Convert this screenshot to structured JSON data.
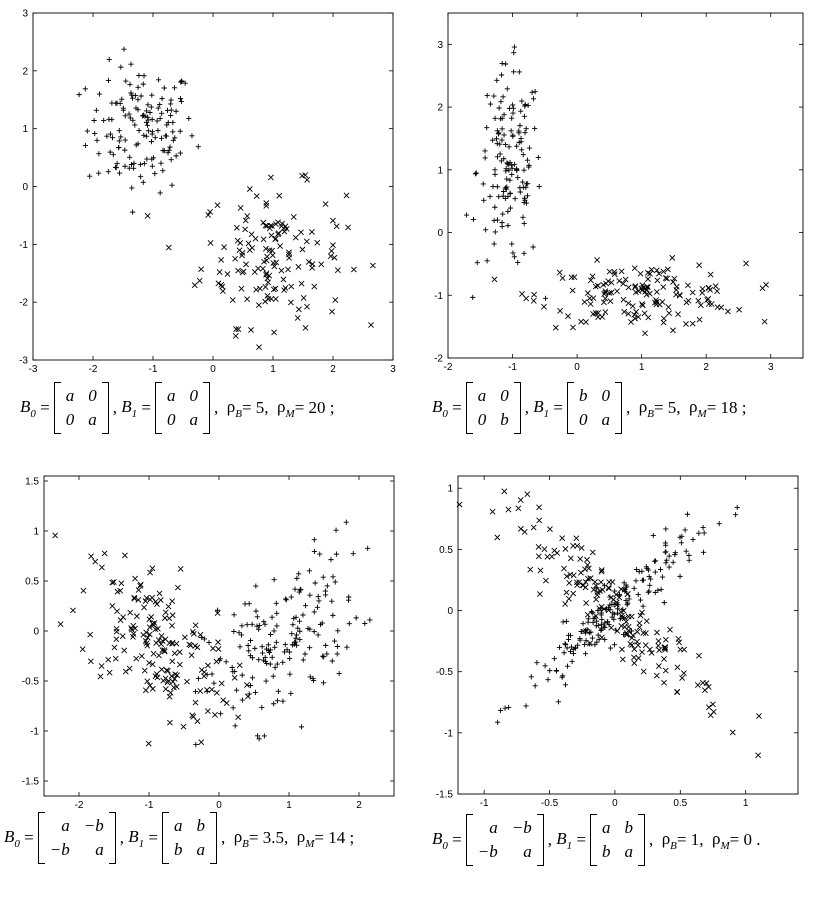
{
  "panels": [
    {
      "id": "p1",
      "caption": {
        "b0": [
          "a",
          "0",
          "0",
          "a"
        ],
        "b1": [
          "a",
          "0",
          "0",
          "a"
        ],
        "rhoB": "5",
        "rhoM": "20",
        "end": ";"
      }
    },
    {
      "id": "p2",
      "caption": {
        "b0": [
          "a",
          "0",
          "0",
          "b"
        ],
        "b1": [
          "b",
          "0",
          "0",
          "a"
        ],
        "rhoB": "5",
        "rhoM": "18",
        "end": ";"
      }
    },
    {
      "id": "p3",
      "caption": {
        "b0": [
          "a",
          "−b",
          "−b",
          "a"
        ],
        "b1": [
          "a",
          "b",
          "b",
          "a"
        ],
        "rhoB": "3.5",
        "rhoM": "14",
        "end": ";"
      }
    },
    {
      "id": "p4",
      "caption": {
        "b0": [
          "a",
          "−b",
          "−b",
          "a"
        ],
        "b1": [
          "a",
          "b",
          "b",
          "a"
        ],
        "rhoB": "1",
        "rhoM": "0",
        "end": "."
      }
    }
  ],
  "labels": {
    "B": "B",
    "zero": "0",
    "one": "1",
    "rho": "ρ",
    "subB": "B",
    "subM": "M",
    "eq": "=",
    "comma": ","
  },
  "chart_data": [
    {
      "type": "scatter",
      "xlim": [
        -3,
        3
      ],
      "ylim": [
        -3,
        3
      ],
      "xticks": [
        "-3",
        "-2",
        "-1",
        "0",
        "1",
        "2",
        "3"
      ],
      "yticks": [
        "-3",
        "-2",
        "-1",
        "0",
        "1",
        "2",
        "3"
      ],
      "series": [
        {
          "marker": "plus",
          "center": [
            -1.2,
            1.0
          ],
          "spread": [
            0.45,
            0.55
          ],
          "rho": 0,
          "n": 150
        },
        {
          "marker": "cross",
          "center": [
            1.0,
            -1.2
          ],
          "spread": [
            0.6,
            0.6
          ],
          "rho": 0,
          "n": 150
        }
      ]
    },
    {
      "type": "scatter",
      "xlim": [
        -2,
        3.5
      ],
      "ylim": [
        -2,
        3.5
      ],
      "xticks": [
        "-2",
        "-1",
        "0",
        "1",
        "2",
        "3"
      ],
      "yticks": [
        "-2",
        "-1",
        "0",
        "1",
        "2",
        "3"
      ],
      "series": [
        {
          "marker": "plus",
          "center": [
            -1.05,
            1.0
          ],
          "spread": [
            0.25,
            0.8
          ],
          "rho": 0,
          "n": 150
        },
        {
          "marker": "cross",
          "center": [
            1.0,
            -1.0
          ],
          "spread": [
            0.8,
            0.25
          ],
          "rho": 0,
          "n": 150
        }
      ]
    },
    {
      "type": "scatter",
      "xlim": [
        -2.5,
        2.5
      ],
      "ylim": [
        -1.65,
        1.55
      ],
      "xticks": [
        "-2",
        "-1",
        "0",
        "1",
        "2"
      ],
      "yticks": [
        "-1.5",
        "-1",
        "-0.5",
        "0",
        "0.5",
        "1",
        "1.5"
      ],
      "series": [
        {
          "marker": "cross",
          "center": [
            -0.9,
            -0.1
          ],
          "spread": [
            0.55,
            0.45
          ],
          "rho": -0.55,
          "n": 175
        },
        {
          "marker": "plus",
          "center": [
            0.9,
            -0.1
          ],
          "spread": [
            0.55,
            0.45
          ],
          "rho": 0.55,
          "n": 175
        }
      ]
    },
    {
      "type": "scatter",
      "xlim": [
        -1.2,
        1.4
      ],
      "ylim": [
        -1.5,
        1.1
      ],
      "xticks": [
        "-1",
        "-0.5",
        "0",
        "0.5",
        "1"
      ],
      "yticks": [
        "-1.5",
        "-1",
        "-0.5",
        "0",
        "0.5",
        "1"
      ],
      "series": [
        {
          "marker": "cross",
          "center": [
            0.0,
            0.0
          ],
          "spread": [
            0.42,
            0.42
          ],
          "rho": -0.94,
          "n": 175
        },
        {
          "marker": "plus",
          "center": [
            0.0,
            0.0
          ],
          "spread": [
            0.34,
            0.34
          ],
          "rho": 0.94,
          "n": 175
        }
      ]
    }
  ]
}
